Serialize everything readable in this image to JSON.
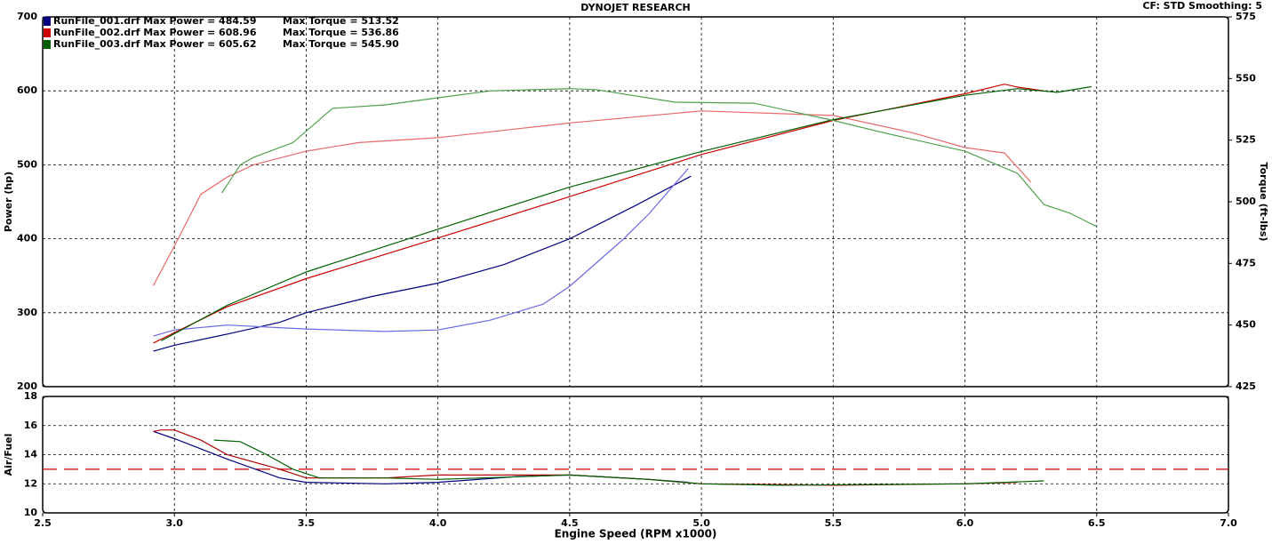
{
  "header": {
    "title": "DYNOJET RESEARCH",
    "settings": "CF: STD  Smoothing: 5"
  },
  "chart_data": [
    {
      "type": "line",
      "ylabel": "Power (hp)",
      "y2label": "Torque (ft-lbs)",
      "xlim": [
        2.5,
        7.0
      ],
      "xticks": [
        2.5,
        3,
        3.5,
        4,
        4.5,
        5,
        5.5,
        6,
        6.5,
        7
      ],
      "ylim": [
        200,
        700
      ],
      "yticks": [
        200,
        300,
        400,
        500,
        600,
        700
      ],
      "y2lim": [
        425,
        575
      ],
      "y2ticks": [
        425,
        450,
        475,
        500,
        525,
        550,
        575
      ],
      "grid": true,
      "legend": "top-left",
      "series": [
        {
          "name": "RunFile_001.drf Max Power = 484.59",
          "color": "#000080",
          "x": [
            2.92,
            3.0,
            3.2,
            3.4,
            3.5,
            3.75,
            4.0,
            4.25,
            4.5,
            4.75,
            4.96
          ],
          "values": [
            248,
            256,
            271,
            287,
            300,
            322,
            340,
            365,
            400,
            445,
            484.59
          ]
        },
        {
          "name": "Max Torque = 513.52",
          "color": "#6a6ae0",
          "axis": "y2",
          "x": [
            2.92,
            3.0,
            3.2,
            3.5,
            3.8,
            4.0,
            4.2,
            4.4,
            4.5,
            4.7,
            4.8,
            4.95
          ],
          "values": [
            445.5,
            448,
            450,
            448.4,
            447.4,
            448,
            452,
            458.5,
            465.7,
            484.5,
            495,
            513.52
          ]
        },
        {
          "name": "RunFile_002.drf Max Power = 608.96",
          "color": "#cc0000",
          "x": [
            2.92,
            3.0,
            3.2,
            3.5,
            4.0,
            4.5,
            5.0,
            5.5,
            6.0,
            6.15,
            6.2,
            6.3
          ],
          "values": [
            259,
            273,
            308,
            346,
            401,
            457,
            514,
            560,
            596,
            608.96,
            605,
            600
          ]
        },
        {
          "name": "Max Torque = 536.86",
          "color": "#e86a6a",
          "axis": "y2",
          "x": [
            2.92,
            3.0,
            3.1,
            3.2,
            3.3,
            3.5,
            3.7,
            4.0,
            4.5,
            5.0,
            5.1,
            5.5,
            5.8,
            6.0,
            6.15,
            6.25
          ],
          "values": [
            466,
            482,
            503,
            510,
            515,
            520.5,
            524,
            526,
            532,
            536.86,
            536.5,
            535,
            528,
            522,
            519.8,
            508
          ]
        },
        {
          "name": "RunFile_003.drf Max Power = 605.62",
          "color": "#006000",
          "x": [
            2.95,
            3.2,
            3.5,
            4.0,
            4.5,
            5.0,
            5.5,
            6.0,
            6.2,
            6.35,
            6.48
          ],
          "values": [
            262,
            310,
            355,
            413,
            470,
            518,
            561,
            594,
            603,
            598,
            605.62
          ]
        },
        {
          "name": "Max Torque = 545.90",
          "color": "#4ea04e",
          "axis": "y2",
          "x": [
            3.18,
            3.25,
            3.3,
            3.45,
            3.6,
            3.8,
            4.0,
            4.2,
            4.5,
            4.6,
            4.9,
            5.2,
            5.5,
            5.7,
            6.0,
            6.2,
            6.3,
            6.4,
            6.5
          ],
          "values": [
            503.6,
            515,
            518,
            524,
            537.9,
            539.3,
            542.2,
            545,
            545.9,
            545.5,
            540.4,
            540,
            533,
            527.8,
            520.5,
            511.5,
            498.9,
            495.3,
            489.9
          ]
        }
      ]
    },
    {
      "type": "line",
      "ylabel": "Air/Fuel",
      "xlabel": "Engine Speed (RPM x1000)",
      "xlim": [
        2.5,
        7.0
      ],
      "xticks": [
        2.5,
        {
          "value": 3,
          "label": "3.0"
        },
        3.5,
        {
          "value": 4,
          "label": "4.0"
        },
        4.5,
        {
          "value": 5,
          "label": "5.0"
        },
        5.5,
        {
          "value": 6,
          "label": "6.0"
        },
        6.5,
        {
          "value": 7,
          "label": "7.0"
        }
      ],
      "ylim": [
        10,
        18
      ],
      "yticks": [
        10,
        12,
        14,
        16,
        18
      ],
      "grid": true,
      "reference_line": 13,
      "reference_color": "#cc0000",
      "series": [
        {
          "color": "#000080",
          "x": [
            2.92,
            3.0,
            3.2,
            3.4,
            3.5,
            3.8,
            4.0,
            4.3,
            4.5,
            4.8,
            4.95
          ],
          "values": [
            15.6,
            15.1,
            13.7,
            12.4,
            12.1,
            12.0,
            12.1,
            12.5,
            12.6,
            12.3,
            12.1
          ]
        },
        {
          "color": "#b00000",
          "x": [
            2.92,
            2.95,
            3.0,
            3.1,
            3.2,
            3.4,
            3.5,
            3.8,
            4.0,
            4.5,
            4.8,
            5.0,
            5.5,
            6.0,
            6.2
          ],
          "values": [
            15.6,
            15.7,
            15.7,
            15.0,
            14.0,
            13.0,
            12.4,
            12.4,
            12.6,
            12.6,
            12.3,
            12.0,
            11.9,
            12.0,
            12.1
          ]
        },
        {
          "color": "#006000",
          "x": [
            3.15,
            3.25,
            3.35,
            3.45,
            3.55,
            3.8,
            4.0,
            4.5,
            4.8,
            5.0,
            5.3,
            6.0,
            6.3
          ],
          "values": [
            15.0,
            14.9,
            14.0,
            13.0,
            12.4,
            12.4,
            12.3,
            12.6,
            12.3,
            12.0,
            11.9,
            12.0,
            12.2
          ]
        }
      ]
    }
  ]
}
